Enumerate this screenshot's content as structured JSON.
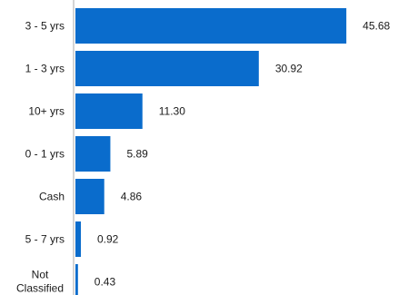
{
  "chart_data": {
    "type": "bar",
    "orientation": "horizontal",
    "categories": [
      "3 - 5 yrs",
      "1 - 3 yrs",
      "10+ yrs",
      "0 - 1 yrs",
      "Cash",
      "5 - 7 yrs",
      "Not Classified"
    ],
    "values": [
      45.68,
      30.92,
      11.3,
      5.89,
      4.86,
      0.92,
      0.43
    ],
    "value_labels": [
      "45.68",
      "30.92",
      "11.30",
      "5.89",
      "4.86",
      "0.92",
      "0.43"
    ],
    "bar_color": "#0a6ccc",
    "axis_color": "#d4d4d4",
    "xlim": [
      0,
      50
    ]
  }
}
